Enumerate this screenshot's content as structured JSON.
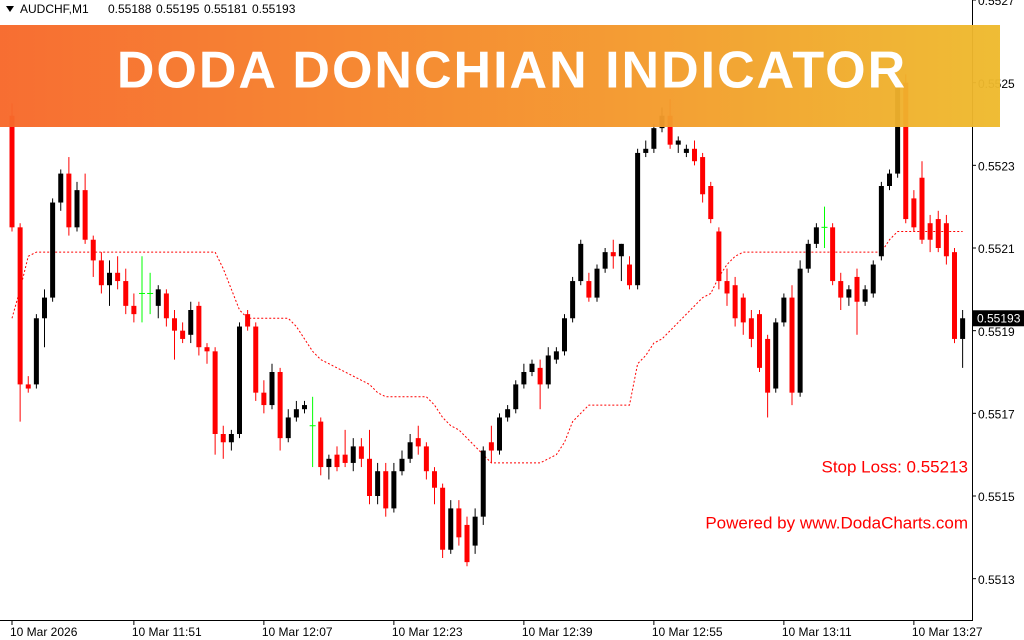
{
  "chart_data": {
    "type": "candlestick",
    "title": "DODA DONCHIAN INDICATOR",
    "symbol": "AUDCHF,M1",
    "annotations": [
      "Stop Loss: 0.55213",
      "Powered by www.DodaCharts.com"
    ],
    "colors": {
      "up": "#000000",
      "down": "#ff0000",
      "doji": "#00ff00"
    },
    "ylim": [
      0.5512,
      0.5527
    ],
    "yticks": [
      0.5527,
      0.5525,
      0.5523,
      0.5521,
      0.5519,
      0.5517,
      0.5515,
      0.5513
    ],
    "categories": [
      "10 Mar 2026",
      null,
      null,
      null,
      null,
      null,
      null,
      null,
      null,
      null,
      null,
      null,
      null,
      null,
      null,
      "10 Mar 11:51",
      null,
      null,
      null,
      null,
      null,
      null,
      null,
      null,
      null,
      null,
      null,
      null,
      null,
      null,
      null,
      "10 Mar 12:07",
      null,
      null,
      null,
      null,
      null,
      null,
      null,
      null,
      null,
      null,
      null,
      null,
      null,
      null,
      null,
      "10 Mar 12:23",
      null,
      null,
      null,
      null,
      null,
      null,
      null,
      null,
      null,
      null,
      null,
      null,
      null,
      null,
      null,
      "10 Mar 12:39",
      null,
      null,
      null,
      null,
      null,
      null,
      null,
      null,
      null,
      null,
      null,
      null,
      null,
      null,
      null,
      "10 Mar 12:55",
      null,
      null,
      null,
      null,
      null,
      null,
      null,
      null,
      null,
      null,
      null,
      null,
      null,
      null,
      null,
      "10 Mar 13:11",
      null,
      null,
      null,
      null,
      null,
      null,
      null,
      null,
      null,
      null,
      null,
      null,
      null,
      null,
      null,
      "10 Mar 13:27",
      null,
      null,
      null,
      null,
      null,
      null
    ],
    "open": [
      0.55242,
      0.55215,
      0.55177,
      0.55177,
      0.55193,
      0.55198,
      0.55221,
      0.55228,
      0.55215,
      0.55224,
      0.55212,
      0.55207,
      0.55201,
      0.55204,
      0.55202,
      0.55196,
      0.55199,
      0.55199,
      0.55196,
      0.55199,
      0.55193,
      0.5519,
      0.55189,
      0.55196,
      0.55186,
      0.55185,
      0.55165,
      0.55163,
      0.55165,
      0.55194,
      0.55191,
      0.55175,
      0.55172,
      0.5518,
      0.55164,
      0.55169,
      0.55171,
      0.55167,
      0.55168,
      0.55157,
      0.5516,
      0.5516,
      0.55158,
      0.55162,
      0.55159,
      0.5515,
      0.55156,
      0.55147,
      0.55156,
      0.55159,
      0.55164,
      0.55162,
      0.55156,
      0.55152,
      0.55137,
      0.55147,
      0.55143,
      0.55138,
      0.55145,
      0.55163,
      0.55161,
      0.55169,
      0.55171,
      0.55177,
      0.5518,
      0.55181,
      0.55177,
      0.55183,
      0.55185,
      0.55193,
      0.55202,
      0.55202,
      0.55198,
      0.55205,
      0.55209,
      0.55208,
      0.55206,
      0.55201,
      0.55233,
      0.55234,
      0.55239,
      0.55242,
      0.55235,
      0.55233,
      0.55234,
      0.55232,
      0.55225,
      0.55214,
      0.55202,
      0.55201,
      0.55198,
      0.55193,
      0.55194,
      0.55188,
      0.55176,
      0.55192,
      0.55198,
      0.55175,
      0.55205,
      0.55211,
      0.55215,
      0.55215,
      0.55202,
      0.55198,
      0.55203,
      0.55197,
      0.55199,
      0.55208,
      0.55225,
      0.55228,
      0.5525,
      0.55222,
      0.55227,
      0.55216,
      0.55217,
      0.55216,
      0.55209,
      0.55188
    ],
    "high": [
      0.55245,
      0.55216,
      0.55179,
      0.55194,
      0.552,
      0.55222,
      0.55229,
      0.55232,
      0.55226,
      0.55228,
      0.55213,
      0.55209,
      0.55207,
      0.55208,
      0.55205,
      0.55199,
      0.55208,
      0.55204,
      0.55201,
      0.552,
      0.55195,
      0.55192,
      0.55197,
      0.55197,
      0.55187,
      0.55186,
      0.55167,
      0.55166,
      0.55192,
      0.55195,
      0.55192,
      0.55178,
      0.55182,
      0.55181,
      0.55171,
      0.55173,
      0.55173,
      0.55174,
      0.55169,
      0.5516,
      0.55162,
      0.55166,
      0.55164,
      0.55164,
      0.55166,
      0.55158,
      0.55158,
      0.55158,
      0.55161,
      0.55165,
      0.55167,
      0.55163,
      0.55157,
      0.55153,
      0.55149,
      0.55149,
      0.55145,
      0.55147,
      0.55162,
      0.55167,
      0.5517,
      0.55172,
      0.55178,
      0.55182,
      0.55183,
      0.55183,
      0.55186,
      0.55186,
      0.55194,
      0.55203,
      0.55212,
      0.55204,
      0.55206,
      0.5521,
      0.55212,
      0.55211,
      0.55208,
      0.55234,
      0.55236,
      0.5524,
      0.55244,
      0.55246,
      0.55237,
      0.55235,
      0.55236,
      0.55233,
      0.55226,
      0.55215,
      0.55205,
      0.55203,
      0.55199,
      0.55195,
      0.55195,
      0.55189,
      0.55193,
      0.55199,
      0.55201,
      0.55207,
      0.55212,
      0.55216,
      0.5522,
      0.55216,
      0.55204,
      0.55201,
      0.55205,
      0.55201,
      0.55207,
      0.55226,
      0.55229,
      0.55251,
      0.55252,
      0.55224,
      0.55231,
      0.55218,
      0.55219,
      0.55218,
      0.5521,
      0.55195
    ],
    "low": [
      0.55214,
      0.55168,
      0.55175,
      0.55176,
      0.55186,
      0.55197,
      0.55219,
      0.55213,
      0.55214,
      0.55211,
      0.55203,
      0.55199,
      0.55196,
      0.552,
      0.55194,
      0.55192,
      0.55192,
      0.55194,
      0.55193,
      0.55191,
      0.55183,
      0.55187,
      0.55187,
      0.55184,
      0.55182,
      0.5516,
      0.55159,
      0.55161,
      0.55164,
      0.5519,
      0.55173,
      0.5517,
      0.55171,
      0.55161,
      0.55163,
      0.55168,
      0.5517,
      0.55157,
      0.55155,
      0.55154,
      0.55156,
      0.55157,
      0.55156,
      0.55157,
      0.55148,
      0.55148,
      0.55145,
      0.55146,
      0.55155,
      0.55158,
      0.5516,
      0.55154,
      0.55148,
      0.55135,
      0.55136,
      0.55138,
      0.55133,
      0.55136,
      0.55143,
      0.55158,
      0.5516,
      0.55168,
      0.5517,
      0.55176,
      0.55179,
      0.55171,
      0.55176,
      0.55182,
      0.55184,
      0.55192,
      0.55201,
      0.55197,
      0.55197,
      0.55204,
      0.55205,
      0.55202,
      0.552,
      0.552,
      0.55232,
      0.55233,
      0.55238,
      0.55234,
      0.55233,
      0.55232,
      0.5523,
      0.55221,
      0.55216,
      0.552,
      0.55196,
      0.55191,
      0.55189,
      0.55186,
      0.5518,
      0.55169,
      0.55175,
      0.55191,
      0.55172,
      0.55174,
      0.55204,
      0.5521,
      0.5521,
      0.55201,
      0.55195,
      0.55196,
      0.55189,
      0.55196,
      0.55198,
      0.55207,
      0.55224,
      0.55227,
      0.55216,
      0.55214,
      0.55211,
      0.55209,
      0.55209,
      0.55206,
      0.55187,
      0.55181
    ],
    "close": [
      0.55215,
      0.55177,
      0.55176,
      0.55193,
      0.55198,
      0.55221,
      0.55228,
      0.55215,
      0.55224,
      0.55212,
      0.55207,
      0.55201,
      0.55204,
      0.55202,
      0.55196,
      0.55194,
      0.55199,
      0.55199,
      0.552,
      0.55193,
      0.5519,
      0.55188,
      0.55195,
      0.55186,
      0.55185,
      0.55165,
      0.55163,
      0.55165,
      0.55191,
      0.55191,
      0.55175,
      0.55172,
      0.5518,
      0.55164,
      0.55169,
      0.55171,
      0.55172,
      0.55167,
      0.55157,
      0.55159,
      0.55157,
      0.55158,
      0.55162,
      0.55159,
      0.5515,
      0.55156,
      0.55147,
      0.55156,
      0.55159,
      0.55163,
      0.55162,
      0.55156,
      0.55152,
      0.55137,
      0.55147,
      0.5514,
      0.55134,
      0.55145,
      0.55161,
      0.55161,
      0.55169,
      0.55171,
      0.55177,
      0.5518,
      0.55182,
      0.55177,
      0.55184,
      0.55185,
      0.55193,
      0.55202,
      0.55211,
      0.55198,
      0.55205,
      0.55209,
      0.55208,
      0.55211,
      0.55201,
      0.55233,
      0.55234,
      0.55239,
      0.55242,
      0.55235,
      0.55236,
      0.55234,
      0.55231,
      0.55223,
      0.55217,
      0.55202,
      0.55199,
      0.55193,
      0.55192,
      0.55188,
      0.55181,
      0.55175,
      0.55192,
      0.55198,
      0.55175,
      0.55205,
      0.55211,
      0.55215,
      0.55215,
      0.55202,
      0.55198,
      0.552,
      0.55197,
      0.552,
      0.55206,
      0.55225,
      0.55228,
      0.5525,
      0.55217,
      0.55215,
      0.55212,
      0.55212,
      0.5521,
      0.55208,
      0.55188,
      0.55193
    ],
    "lines": [
      {
        "color": "#ff0000",
        "values": [
          0.55193,
          0.552,
          0.55208,
          0.55209,
          0.55209,
          0.55209,
          0.55209,
          0.55209,
          0.55209,
          0.55209,
          0.55209,
          0.55209,
          0.55209,
          0.55209,
          0.55209,
          0.55209,
          0.55209,
          0.55209,
          0.55209,
          0.55209,
          0.55209,
          0.55209,
          0.55209,
          0.55209,
          0.55209,
          0.55209,
          0.55205,
          0.552,
          0.55195,
          0.55193,
          0.55193,
          0.55193,
          0.55193,
          0.55193,
          0.55193,
          0.55191,
          0.55188,
          0.55185,
          0.55183,
          0.55182,
          0.55181,
          0.5518,
          0.55179,
          0.55178,
          0.55177,
          0.55175,
          0.55174,
          0.55174,
          0.55174,
          0.55174,
          0.55174,
          0.55174,
          0.55172,
          0.55169,
          0.55167,
          0.55166,
          0.55164,
          0.55162,
          0.5516,
          0.55158,
          0.55158,
          0.55158,
          0.55158,
          0.55158,
          0.55158,
          0.55158,
          0.55159,
          0.5516,
          0.55163,
          0.55168,
          0.5517,
          0.55172,
          0.55172,
          0.55172,
          0.55172,
          0.55172,
          0.55172,
          0.55182,
          0.55184,
          0.55187,
          0.55188,
          0.5519,
          0.55192,
          0.55194,
          0.55196,
          0.55198,
          0.55199,
          0.55203,
          0.55206,
          0.55208,
          0.55209,
          0.55209,
          0.55209,
          0.55209,
          0.55209,
          0.55209,
          0.55209,
          0.55209,
          0.55209,
          0.55209,
          0.55209,
          0.55209,
          0.55209,
          0.55209,
          0.55209,
          0.55209,
          0.55209,
          0.55209,
          0.55212,
          0.55214,
          0.55214,
          0.55214,
          0.55214,
          0.55214,
          0.55214,
          0.55214,
          0.55214,
          0.55214
        ]
      }
    ]
  }
}
